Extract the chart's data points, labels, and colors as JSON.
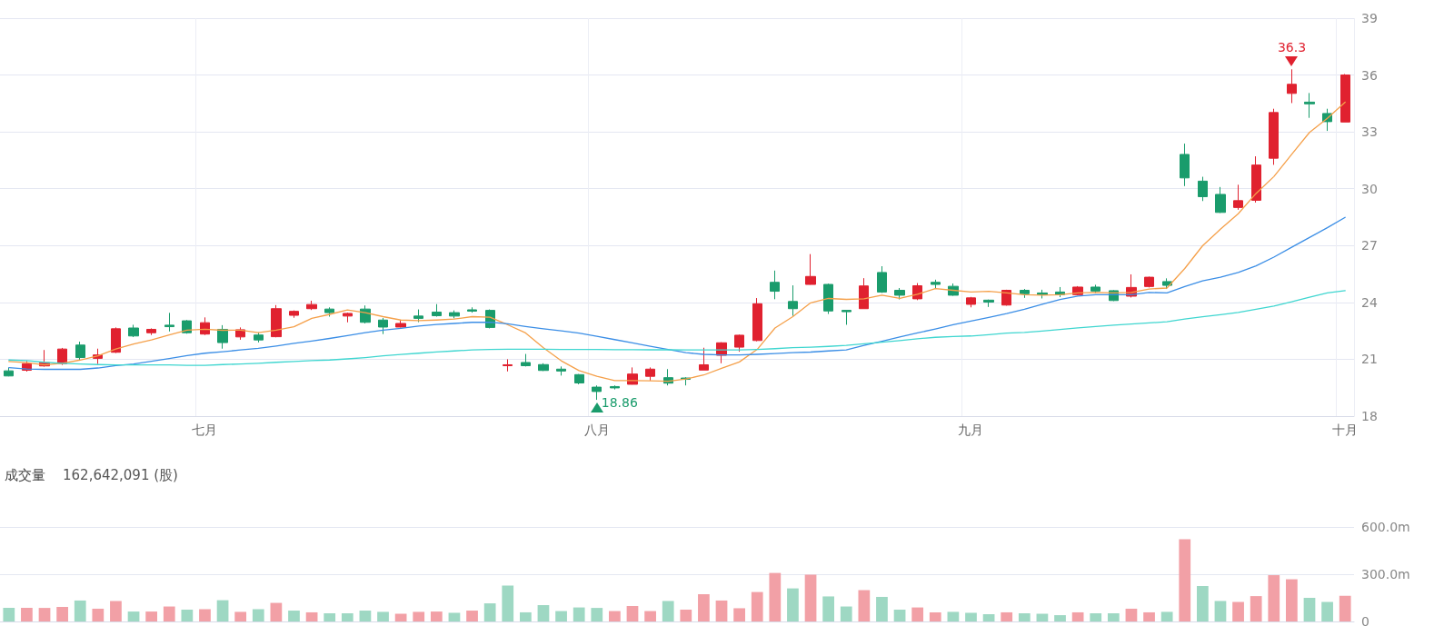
{
  "chart_data": [
    {
      "type": "candlestick",
      "categories": [
        null,
        null,
        null,
        null,
        null,
        null,
        null,
        null,
        null,
        null,
        null,
        "七月",
        null,
        null,
        null,
        null,
        null,
        null,
        null,
        null,
        null,
        null,
        null,
        null,
        null,
        null,
        null,
        null,
        null,
        null,
        null,
        null,
        null,
        "八月",
        null,
        null,
        null,
        null,
        null,
        null,
        null,
        null,
        null,
        null,
        null,
        null,
        null,
        null,
        null,
        null,
        null,
        null,
        null,
        null,
        "九月",
        null,
        null,
        null,
        null,
        null,
        null,
        null,
        null,
        null,
        null,
        null,
        null,
        null,
        null,
        null,
        null,
        null,
        null,
        null,
        null,
        "十月"
      ],
      "ohlc": [
        [
          20.39,
          20.56,
          20.1,
          20.12
        ],
        [
          20.42,
          20.91,
          20.35,
          20.77
        ],
        [
          20.65,
          21.49,
          20.61,
          20.82
        ],
        [
          20.77,
          21.6,
          20.7,
          21.54
        ],
        [
          21.75,
          21.93,
          20.93,
          21.09
        ],
        [
          21.05,
          21.56,
          20.75,
          21.23
        ],
        [
          21.37,
          22.68,
          21.33,
          22.61
        ],
        [
          22.65,
          22.82,
          22.17,
          22.23
        ],
        [
          22.4,
          22.63,
          22.28,
          22.58
        ],
        [
          22.8,
          23.45,
          22.47,
          22.72
        ],
        [
          23.03,
          23.07,
          22.35,
          22.4
        ],
        [
          22.33,
          23.21,
          22.28,
          22.93
        ],
        [
          22.58,
          22.8,
          21.56,
          21.88
        ],
        [
          22.18,
          22.68,
          22.03,
          22.56
        ],
        [
          22.28,
          22.42,
          21.89,
          22.02
        ],
        [
          22.19,
          23.86,
          22.16,
          23.67
        ],
        [
          23.32,
          23.58,
          23.19,
          23.53
        ],
        [
          23.67,
          24.09,
          23.6,
          23.89
        ],
        [
          23.65,
          23.74,
          23.25,
          23.46
        ],
        [
          23.28,
          23.46,
          22.95,
          23.42
        ],
        [
          23.65,
          23.84,
          22.89,
          22.95
        ],
        [
          23.07,
          23.18,
          22.33,
          22.7
        ],
        [
          22.7,
          23.07,
          22.68,
          22.89
        ],
        [
          23.28,
          23.63,
          22.96,
          23.16
        ],
        [
          23.49,
          23.91,
          23.25,
          23.3
        ],
        [
          23.46,
          23.58,
          23.16,
          23.28
        ],
        [
          23.61,
          23.74,
          23.46,
          23.54
        ],
        [
          23.58,
          23.63,
          22.63,
          22.68
        ],
        [
          20.66,
          21.0,
          20.36,
          20.71
        ],
        [
          20.83,
          21.28,
          20.62,
          20.66
        ],
        [
          20.72,
          20.79,
          20.38,
          20.41
        ],
        [
          20.48,
          20.62,
          20.14,
          20.38
        ],
        [
          20.19,
          20.22,
          19.68,
          19.75
        ],
        [
          19.53,
          19.62,
          18.86,
          19.3
        ],
        [
          19.56,
          19.62,
          19.41,
          19.49
        ],
        [
          19.68,
          20.57,
          19.67,
          20.22
        ],
        [
          20.1,
          20.57,
          19.88,
          20.48
        ],
        [
          20.03,
          20.48,
          19.62,
          19.74
        ],
        [
          20.01,
          20.05,
          19.62,
          19.94
        ],
        [
          20.43,
          21.61,
          20.43,
          20.71
        ],
        [
          21.21,
          21.9,
          20.79,
          21.87
        ],
        [
          21.64,
          22.3,
          21.4,
          22.27
        ],
        [
          21.99,
          24.23,
          21.95,
          23.93
        ],
        [
          25.06,
          25.68,
          24.17,
          24.59
        ],
        [
          24.05,
          24.9,
          23.29,
          23.67
        ],
        [
          24.95,
          26.55,
          24.94,
          25.37
        ],
        [
          24.95,
          24.99,
          23.39,
          23.55
        ],
        [
          23.58,
          23.58,
          22.82,
          23.51
        ],
        [
          23.67,
          25.28,
          23.67,
          24.87
        ],
        [
          25.58,
          25.91,
          24.5,
          24.55
        ],
        [
          24.64,
          24.76,
          24.16,
          24.38
        ],
        [
          24.19,
          25.02,
          24.12,
          24.88
        ],
        [
          25.06,
          25.2,
          24.73,
          24.95
        ],
        [
          24.85,
          25.0,
          24.35,
          24.38
        ],
        [
          23.9,
          24.29,
          23.74,
          24.24
        ],
        [
          24.12,
          24.15,
          23.76,
          24.02
        ],
        [
          23.86,
          24.67,
          23.83,
          24.64
        ],
        [
          24.64,
          24.71,
          24.24,
          24.46
        ],
        [
          24.5,
          24.67,
          24.21,
          24.41
        ],
        [
          24.55,
          24.81,
          24.28,
          24.41
        ],
        [
          24.41,
          24.86,
          24.38,
          24.81
        ],
        [
          24.81,
          24.93,
          24.5,
          24.6
        ],
        [
          24.62,
          24.65,
          24.07,
          24.1
        ],
        [
          24.33,
          25.48,
          24.26,
          24.79
        ],
        [
          24.84,
          25.36,
          24.79,
          25.33
        ],
        [
          25.1,
          25.27,
          24.71,
          24.9
        ],
        [
          31.81,
          32.38,
          30.14,
          30.57
        ],
        [
          30.4,
          30.63,
          29.35,
          29.58
        ],
        [
          29.7,
          30.09,
          28.72,
          28.75
        ],
        [
          29.01,
          30.21,
          28.89,
          29.37
        ],
        [
          29.39,
          31.71,
          29.27,
          31.25
        ],
        [
          31.61,
          34.22,
          31.26,
          34.02
        ],
        [
          35.03,
          36.3,
          34.52,
          35.51
        ],
        [
          34.57,
          35.05,
          33.74,
          34.48
        ],
        [
          33.97,
          34.22,
          33.05,
          33.54
        ],
        [
          33.52,
          36.05,
          33.52,
          36.0
        ]
      ],
      "colors": [
        "#1a9c6c",
        "#e0212f",
        "#e0212f",
        "#e0212f",
        "#1a9c6c",
        "#e0212f",
        "#e0212f",
        "#1a9c6c",
        "#e0212f",
        "#1a9c6c",
        "#1a9c6c",
        "#e0212f",
        "#1a9c6c",
        "#e0212f",
        "#1a9c6c",
        "#e0212f",
        "#e0212f",
        "#e0212f",
        "#1a9c6c",
        "#e0212f",
        "#1a9c6c",
        "#1a9c6c",
        "#e0212f",
        "#1a9c6c",
        "#1a9c6c",
        "#1a9c6c",
        "#1a9c6c",
        "#1a9c6c",
        "#e0212f",
        "#1a9c6c",
        "#1a9c6c",
        "#1a9c6c",
        "#1a9c6c",
        "#1a9c6c",
        "#1a9c6c",
        "#e0212f",
        "#e0212f",
        "#1a9c6c",
        "#1a9c6c",
        "#e0212f",
        "#e0212f",
        "#e0212f",
        "#e0212f",
        "#1a9c6c",
        "#1a9c6c",
        "#e0212f",
        "#1a9c6c",
        "#1a9c6c",
        "#e0212f",
        "#1a9c6c",
        "#1a9c6c",
        "#e0212f",
        "#1a9c6c",
        "#1a9c6c",
        "#e0212f",
        "#1a9c6c",
        "#e0212f",
        "#1a9c6c",
        "#1a9c6c",
        "#1a9c6c",
        "#e0212f",
        "#1a9c6c",
        "#1a9c6c",
        "#e0212f",
        "#e0212f",
        "#1a9c6c",
        "#1a9c6c",
        "#1a9c6c",
        "#1a9c6c",
        "#e0212f",
        "#e0212f",
        "#e0212f",
        "#e0212f",
        "#1a9c6c",
        "#1a9c6c",
        "#e0212f"
      ],
      "series": [
        {
          "type": "line",
          "color": "#f5a04a",
          "values": [
            20.88,
            20.82,
            20.7,
            20.79,
            20.96,
            21.18,
            21.54,
            21.81,
            22.02,
            22.28,
            22.54,
            22.58,
            22.53,
            22.54,
            22.4,
            22.54,
            22.72,
            23.16,
            23.37,
            23.6,
            23.46,
            23.25,
            23.07,
            23.04,
            23.07,
            23.12,
            23.25,
            23.22,
            22.82,
            22.39,
            21.61,
            20.92,
            20.4,
            20.1,
            19.88,
            19.88,
            19.86,
            19.84,
            19.96,
            20.17,
            20.52,
            20.86,
            21.52,
            22.65,
            23.25,
            23.98,
            24.21,
            24.16,
            24.19,
            24.38,
            24.21,
            24.43,
            24.73,
            24.64,
            24.55,
            24.59,
            24.5,
            24.41,
            24.38,
            24.41,
            24.5,
            24.53,
            24.5,
            24.53,
            24.71,
            24.76,
            25.79,
            26.99,
            27.86,
            28.68,
            29.75,
            30.64,
            31.81,
            32.97,
            33.71,
            34.57
          ]
        },
        {
          "type": "line",
          "color": "#3b8ee6",
          "values": [
            20.56,
            20.49,
            20.47,
            20.47,
            20.47,
            20.54,
            20.67,
            20.75,
            20.89,
            21.04,
            21.19,
            21.32,
            21.4,
            21.49,
            21.58,
            21.7,
            21.84,
            21.96,
            22.1,
            22.25,
            22.4,
            22.54,
            22.63,
            22.75,
            22.84,
            22.89,
            22.95,
            22.96,
            22.87,
            22.73,
            22.61,
            22.5,
            22.38,
            22.21,
            22.04,
            21.87,
            21.69,
            21.52,
            21.35,
            21.26,
            21.23,
            21.23,
            21.26,
            21.3,
            21.35,
            21.38,
            21.44,
            21.49,
            21.73,
            21.95,
            22.18,
            22.39,
            22.6,
            22.82,
            23.02,
            23.21,
            23.41,
            23.64,
            23.9,
            24.15,
            24.33,
            24.41,
            24.41,
            24.41,
            24.53,
            24.5,
            24.84,
            25.14,
            25.33,
            25.58,
            25.93,
            26.39,
            26.91,
            27.43,
            27.94,
            28.49
          ]
        },
        {
          "type": "line",
          "color": "#3fd6d0",
          "values": [
            20.96,
            20.93,
            20.84,
            20.79,
            20.75,
            20.72,
            20.7,
            20.7,
            20.7,
            20.7,
            20.68,
            20.68,
            20.72,
            20.75,
            20.79,
            20.84,
            20.88,
            20.93,
            20.96,
            21.02,
            21.09,
            21.18,
            21.25,
            21.32,
            21.39,
            21.44,
            21.49,
            21.52,
            21.53,
            21.53,
            21.53,
            21.52,
            21.52,
            21.52,
            21.51,
            21.51,
            21.5,
            21.5,
            21.49,
            21.49,
            21.49,
            21.49,
            21.52,
            21.56,
            21.61,
            21.64,
            21.68,
            21.73,
            21.82,
            21.9,
            21.99,
            22.08,
            22.16,
            22.2,
            22.23,
            22.3,
            22.38,
            22.42,
            22.49,
            22.57,
            22.66,
            22.73,
            22.8,
            22.86,
            22.92,
            22.98,
            23.12,
            23.24,
            23.35,
            23.47,
            23.64,
            23.81,
            24.03,
            24.28,
            24.5,
            24.62
          ]
        }
      ],
      "ylim": [
        18,
        39
      ],
      "yticks": [
        18,
        21,
        24,
        27,
        30,
        33,
        36,
        39
      ],
      "grid": true,
      "marker": "none",
      "annotations": [
        {
          "text": "36.3",
          "y": 36.3
        },
        "18.86"
      ]
    },
    {
      "type": "bar",
      "title": "成交量",
      "subtitle": "162,642,091 (股)",
      "categories": [
        null,
        null,
        null,
        null,
        null,
        null,
        null,
        null,
        null,
        null,
        null,
        null,
        null,
        null,
        null,
        null,
        null,
        null,
        null,
        null,
        null,
        null,
        null,
        null,
        null,
        null,
        null,
        null,
        null,
        null,
        null,
        null,
        null,
        null,
        null,
        null,
        null,
        null,
        null,
        null,
        null,
        null,
        null,
        null,
        null,
        null,
        null,
        null,
        null,
        null,
        null,
        null,
        null,
        null,
        null,
        null,
        null,
        null,
        null,
        null,
        null,
        null,
        null,
        null,
        null,
        null,
        null,
        null,
        null,
        null,
        null,
        null,
        null,
        null,
        null,
        null
      ],
      "values": [
        86,
        86,
        86,
        92,
        133,
        81,
        130,
        63,
        63,
        95,
        75,
        78,
        135,
        61,
        78,
        118,
        69,
        58,
        52,
        52,
        69,
        61,
        49,
        61,
        63,
        55,
        69,
        115,
        228,
        58,
        104,
        66,
        89,
        86,
        66,
        98,
        66,
        130,
        75,
        173,
        133,
        84,
        187,
        308,
        210,
        297,
        159,
        95,
        199,
        156,
        75,
        89,
        58,
        61,
        55,
        46,
        58,
        52,
        49,
        40,
        58,
        52,
        52,
        81,
        58,
        61,
        522,
        225,
        130,
        124,
        161,
        294,
        268,
        150,
        124,
        163
      ],
      "colors": [
        "#9ed8c3",
        "#f2a0a6",
        "#f2a0a6",
        "#f2a0a6",
        "#9ed8c3",
        "#f2a0a6",
        "#f2a0a6",
        "#9ed8c3",
        "#f2a0a6",
        "#f2a0a6",
        "#9ed8c3",
        "#f2a0a6",
        "#9ed8c3",
        "#f2a0a6",
        "#9ed8c3",
        "#f2a0a6",
        "#9ed8c3",
        "#f2a0a6",
        "#9ed8c3",
        "#9ed8c3",
        "#9ed8c3",
        "#9ed8c3",
        "#f2a0a6",
        "#f2a0a6",
        "#f2a0a6",
        "#9ed8c3",
        "#f2a0a6",
        "#9ed8c3",
        "#9ed8c3",
        "#9ed8c3",
        "#9ed8c3",
        "#9ed8c3",
        "#9ed8c3",
        "#9ed8c3",
        "#f2a0a6",
        "#f2a0a6",
        "#f2a0a6",
        "#9ed8c3",
        "#f2a0a6",
        "#f2a0a6",
        "#f2a0a6",
        "#f2a0a6",
        "#f2a0a6",
        "#f2a0a6",
        "#9ed8c3",
        "#f2a0a6",
        "#9ed8c3",
        "#9ed8c3",
        "#f2a0a6",
        "#9ed8c3",
        "#9ed8c3",
        "#f2a0a6",
        "#f2a0a6",
        "#9ed8c3",
        "#9ed8c3",
        "#9ed8c3",
        "#f2a0a6",
        "#9ed8c3",
        "#9ed8c3",
        "#9ed8c3",
        "#f2a0a6",
        "#9ed8c3",
        "#9ed8c3",
        "#f2a0a6",
        "#f2a0a6",
        "#9ed8c3",
        "#f2a0a6",
        "#9ed8c3",
        "#9ed8c3",
        "#f2a0a6",
        "#f2a0a6",
        "#f2a0a6",
        "#f2a0a6",
        "#9ed8c3",
        "#9ed8c3",
        "#f2a0a6"
      ],
      "ylim": [
        0,
        600
      ],
      "yticks": [
        0,
        {
          "value": 300,
          "label": "300.0m"
        },
        {
          "value": 600,
          "label": "600.0m"
        }
      ],
      "grid": "y",
      "tick_labels": "y"
    }
  ]
}
